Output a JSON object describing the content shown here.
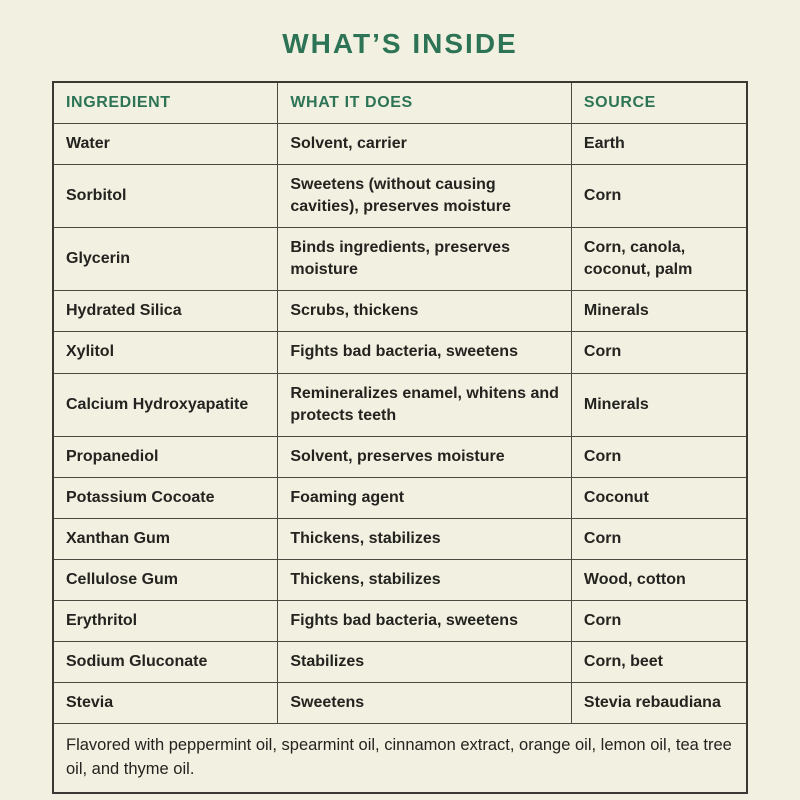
{
  "page": {
    "title": "WHAT’S INSIDE",
    "footer": "Flavored with peppermint oil, spearmint oil, cinnamon extract, orange oil, lemon oil, tea tree oil, and thyme oil."
  },
  "colors": {
    "background": "#f2f0e1",
    "accent_green": "#2d7456",
    "text": "#24231f",
    "border": "#4b4940"
  },
  "table": {
    "headers": [
      "INGREDIENT",
      "WHAT IT DOES",
      "SOURCE"
    ],
    "rows": [
      [
        "Water",
        "Solvent, carrier",
        "Earth"
      ],
      [
        "Sorbitol",
        "Sweetens (without causing cavities), preserves moisture",
        "Corn"
      ],
      [
        "Glycerin",
        "Binds ingredients, preserves moisture",
        "Corn, canola, coconut, palm"
      ],
      [
        "Hydrated Silica",
        "Scrubs, thickens",
        "Minerals"
      ],
      [
        "Xylitol",
        "Fights bad bacteria, sweetens",
        "Corn"
      ],
      [
        "Calcium Hydroxyapatite",
        "Remineralizes enamel, whitens and protects teeth",
        "Minerals"
      ],
      [
        "Propanediol",
        "Solvent, preserves moisture",
        "Corn"
      ],
      [
        "Potassium Cocoate",
        "Foaming agent",
        "Coconut"
      ],
      [
        "Xanthan Gum",
        "Thickens, stabilizes",
        "Corn"
      ],
      [
        "Cellulose Gum",
        "Thickens, stabilizes",
        "Wood, cotton"
      ],
      [
        "Erythritol",
        "Fights bad bacteria, sweetens",
        "Corn"
      ],
      [
        "Sodium Gluconate",
        "Stabilizes",
        "Corn, beet"
      ],
      [
        "Stevia",
        "Sweetens",
        "Stevia rebaudiana"
      ]
    ]
  }
}
